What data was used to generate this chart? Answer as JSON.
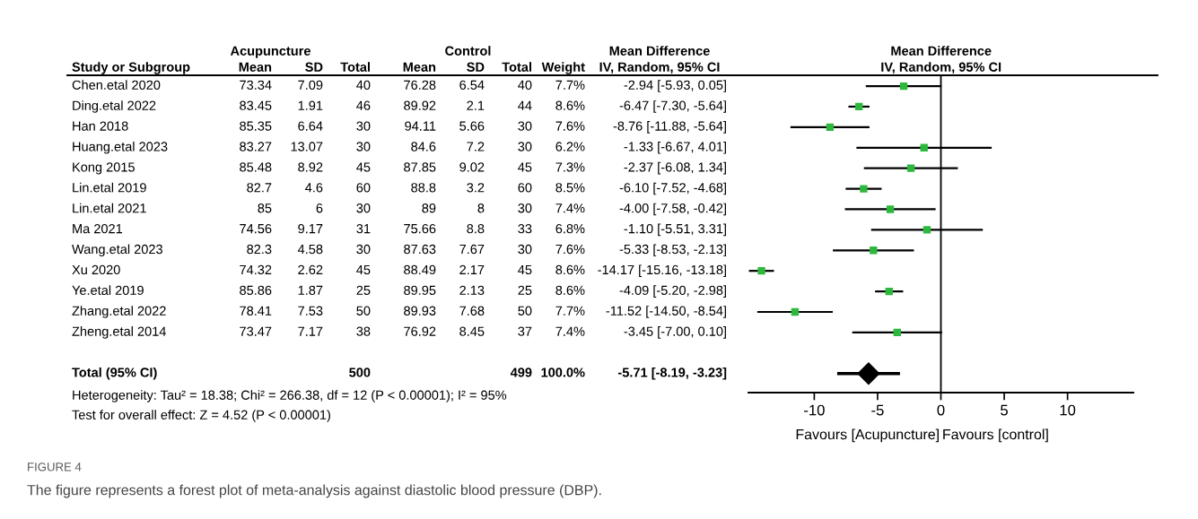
{
  "chart_data": [
    {
      "type": "other",
      "ylabel": "Study or Subgroup",
      "categories": [
        "Mean",
        "SD",
        "Total",
        "Mean",
        "SD",
        "Total",
        "Weight",
        "IV, Random, 95% CI"
      ],
      "y_categories": [
        "Chen.etal 2020",
        "Ding.etal 2022",
        "Han 2018",
        "Huang.etal 2023",
        "Kong 2015",
        "Lin.etal 2019",
        "Lin.etal 2021",
        "Ma 2021",
        "Wang.etal 2023",
        "Xu 2020",
        "Ye.etal 2019",
        "Zhang.etal 2022",
        "Zheng.etal 2014",
        "Total (95% CI)"
      ],
      "cell_labels": [
        [
          "73.34",
          "7.09",
          "40",
          "76.28",
          "6.54",
          "40",
          "7.7%",
          "-2.94 [-5.93, 0.05]"
        ],
        [
          "83.45",
          "1.91",
          "46",
          "89.92",
          "2.1",
          "44",
          "8.6%",
          "-6.47 [-7.30, -5.64]"
        ],
        [
          "85.35",
          "6.64",
          "30",
          "94.11",
          "5.66",
          "30",
          "7.6%",
          "-8.76 [-11.88, -5.64]"
        ],
        [
          "83.27",
          "13.07",
          "30",
          "84.6",
          "7.2",
          "30",
          "6.2%",
          "-1.33 [-6.67, 4.01]"
        ],
        [
          "85.48",
          "8.92",
          "45",
          "87.85",
          "9.02",
          "45",
          "7.3%",
          "-2.37 [-6.08, 1.34]"
        ],
        [
          "82.7",
          "4.6",
          "60",
          "88.8",
          "3.2",
          "60",
          "8.5%",
          "-6.10 [-7.52, -4.68]"
        ],
        [
          "85",
          "6",
          "30",
          "89",
          "8",
          "30",
          "7.4%",
          "-4.00 [-7.58, -0.42]"
        ],
        [
          "74.56",
          "9.17",
          "31",
          "75.66",
          "8.8",
          "33",
          "6.8%",
          "-1.10 [-5.51, 3.31]"
        ],
        [
          "82.3",
          "4.58",
          "30",
          "87.63",
          "7.67",
          "30",
          "7.6%",
          "-5.33 [-8.53, -2.13]"
        ],
        [
          "74.32",
          "2.62",
          "45",
          "88.49",
          "2.17",
          "45",
          "8.6%",
          "-14.17 [-15.16, -13.18]"
        ],
        [
          "85.86",
          "1.87",
          "25",
          "89.95",
          "2.13",
          "25",
          "8.6%",
          "-4.09 [-5.20, -2.98]"
        ],
        [
          "78.41",
          "7.53",
          "50",
          "89.93",
          "7.68",
          "50",
          "7.7%",
          "-11.52 [-14.50, -8.54]"
        ],
        [
          "73.47",
          "7.17",
          "38",
          "76.92",
          "8.45",
          "37",
          "7.4%",
          "-3.45 [-7.00, 0.10]"
        ],
        [
          null,
          null,
          "500",
          null,
          null,
          "499",
          "100.0%",
          "-5.71 [-8.19, -3.23]"
        ]
      ],
      "annotations": [
        "Acupuncture",
        "Control",
        "Mean Difference",
        "Heterogeneity: Tau² = 18.38; Chi² = 266.38, df = 12 (P < 0.00001); I² = 95%",
        "Test for overall effect: Z = 4.52 (P < 0.00001)",
        "FIGURE 4",
        "The figure represents a forest plot of meta-analysis against diastolic blood pressure (DBP)."
      ]
    },
    {
      "type": "scatter",
      "orientation": "horizontal",
      "title": "Mean Difference",
      "subtitle": "IV, Random, 95% CI",
      "categories": [
        null,
        null,
        null,
        null,
        null,
        null,
        null,
        null,
        null,
        null,
        null,
        null,
        null,
        null,
        null
      ],
      "series": [
        {
          "color": "#2db83d",
          "marker": "square",
          "values": [
            -2.94,
            -6.47,
            -8.76,
            -1.33,
            -2.37,
            -6.1,
            -4.0,
            -1.1,
            -5.33,
            -14.17,
            -4.09,
            -11.52,
            -3.45,
            null,
            null
          ],
          "errors": [
            [
              -5.93,
              0.05
            ],
            [
              -7.3,
              -5.64
            ],
            [
              -11.88,
              -5.64
            ],
            [
              -6.67,
              4.01
            ],
            [
              -6.08,
              1.34
            ],
            [
              -7.52,
              -4.68
            ],
            [
              -7.58,
              -0.42
            ],
            [
              -5.51,
              3.31
            ],
            [
              -8.53,
              -2.13
            ],
            [
              -15.16,
              -13.18
            ],
            [
              -5.2,
              -2.98
            ],
            [
              -14.5,
              -8.54
            ],
            [
              -7.0,
              0.1
            ],
            null,
            null
          ]
        },
        {
          "color": "#000000",
          "marker": "diamond",
          "values": [
            null,
            null,
            null,
            null,
            null,
            null,
            null,
            null,
            null,
            null,
            null,
            null,
            null,
            null,
            -5.71
          ],
          "errors": [
            null,
            null,
            null,
            null,
            null,
            null,
            null,
            null,
            null,
            null,
            null,
            null,
            null,
            null,
            [
              -8.19,
              -3.23
            ]
          ]
        }
      ],
      "xlim": [
        -15.2,
        15.2
      ],
      "xticks": [
        -10,
        -5,
        0,
        5,
        10
      ],
      "tick_labels": "x",
      "ref_lines": [
        {
          "axis": "x",
          "value": 0,
          "color": "#000000"
        }
      ],
      "annotations": [
        "Favours [Acupuncture]",
        "Favours [control]"
      ]
    }
  ]
}
